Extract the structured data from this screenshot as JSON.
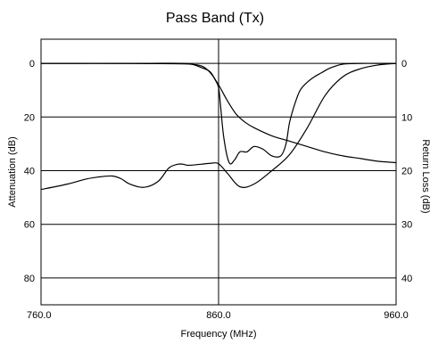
{
  "chart_data": {
    "type": "line",
    "title": "Pass Band (Tx)",
    "xlabel": "Frequency (MHz)",
    "ylabel": "Attenuation (dB)",
    "y2label": "Return Loss (dB)",
    "xlim": [
      760,
      960
    ],
    "ylim": [
      -9,
      90
    ],
    "y2lim": [
      -4.5,
      45
    ],
    "x_ticks": [
      {
        "value": 760,
        "label": "760.0"
      },
      {
        "value": 860,
        "label": "860.0"
      },
      {
        "value": 960,
        "label": "960.0"
      }
    ],
    "y_ticks": [
      {
        "value": 0,
        "label": "0"
      },
      {
        "value": 20,
        "label": "20"
      },
      {
        "value": 40,
        "label": "40"
      },
      {
        "value": 60,
        "label": "60"
      },
      {
        "value": 80,
        "label": "80"
      }
    ],
    "y2_ticks": [
      {
        "value": 0,
        "label": "0"
      },
      {
        "value": 10,
        "label": "10"
      },
      {
        "value": 20,
        "label": "20"
      },
      {
        "value": 30,
        "label": "30"
      },
      {
        "value": 40,
        "label": "40"
      }
    ],
    "grid": true,
    "series": [
      {
        "axis": "left",
        "x": [
          760,
          780,
          800,
          820,
          840,
          848,
          852,
          856,
          860,
          865,
          870,
          875,
          880,
          890,
          900,
          910,
          920,
          930,
          940,
          950,
          960
        ],
        "values": [
          0,
          0,
          0,
          0.1,
          0.2,
          0.6,
          1.5,
          4,
          8,
          14,
          19,
          22,
          24,
          27,
          29,
          31,
          33,
          34.5,
          35.5,
          36.5,
          37
        ]
      },
      {
        "axis": "right",
        "x": [
          760,
          775,
          785,
          792,
          800,
          805,
          810,
          818,
          826,
          832,
          837,
          840,
          843,
          850,
          856,
          860,
          865,
          872,
          880,
          890,
          900,
          910,
          920,
          930,
          940,
          950,
          960
        ],
        "values": [
          23.5,
          22.5,
          21.6,
          21.2,
          21,
          21.5,
          22.5,
          23.1,
          22,
          19.5,
          18.8,
          18.8,
          19,
          18.8,
          18.6,
          18.7,
          20.5,
          23,
          22.5,
          20,
          17,
          12,
          6,
          2.5,
          1,
          0.3,
          0
        ]
      },
      {
        "axis": "left",
        "x": [
          760,
          800,
          820,
          840,
          846,
          850,
          855,
          858,
          860,
          861,
          863,
          866,
          869,
          872,
          876,
          880,
          885,
          890,
          895,
          898,
          900,
          903,
          906,
          910,
          914,
          918,
          922,
          926,
          930,
          935,
          940,
          950,
          960
        ],
        "values": [
          0,
          0,
          0,
          0,
          0.5,
          1.5,
          3,
          6,
          9,
          15,
          28,
          37,
          36,
          33,
          33,
          31,
          32,
          34.5,
          34.5,
          30,
          22,
          15,
          10,
          7,
          5,
          3.5,
          2,
          1,
          0.3,
          0.1,
          0,
          0,
          0
        ]
      }
    ]
  }
}
